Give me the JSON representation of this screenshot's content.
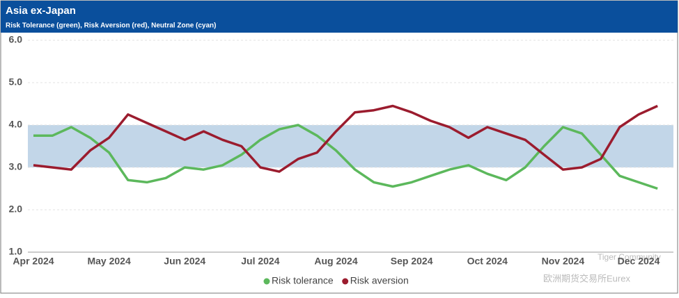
{
  "chart_data": {
    "type": "line",
    "title": "Asia ex-Japan",
    "subtitle": "Risk Tolerance (green), Risk Aversion (red), Neutral Zone (cyan)",
    "categories": [
      "Apr 2024",
      null,
      null,
      null,
      "May 2024",
      null,
      null,
      null,
      "Jun 2024",
      null,
      null,
      null,
      "Jul 2024",
      null,
      null,
      null,
      "Aug 2024",
      null,
      null,
      null,
      "Sep 2024",
      null,
      null,
      null,
      "Oct 2024",
      null,
      null,
      null,
      "Nov 2024",
      null,
      null,
      null,
      "Dec 2024",
      null
    ],
    "series": [
      {
        "name": "Risk tolerance",
        "color": "#5cb85c",
        "values": [
          3.75,
          3.75,
          3.95,
          3.7,
          3.35,
          2.7,
          2.65,
          2.75,
          3.0,
          2.95,
          3.05,
          3.3,
          3.65,
          3.9,
          4.0,
          3.75,
          3.4,
          2.95,
          2.65,
          2.55,
          2.65,
          2.8,
          2.95,
          3.05,
          2.85,
          2.7,
          3.0,
          3.5,
          3.95,
          3.8,
          3.3,
          2.8,
          2.65,
          2.5
        ]
      },
      {
        "name": "Risk aversion",
        "color": "#9b1c2e",
        "values": [
          3.05,
          3.0,
          2.95,
          3.4,
          3.7,
          4.25,
          4.05,
          3.85,
          3.65,
          3.85,
          3.65,
          3.5,
          3.0,
          2.9,
          3.2,
          3.35,
          3.85,
          4.3,
          4.35,
          4.45,
          4.3,
          4.1,
          3.95,
          3.7,
          3.95,
          3.8,
          3.65,
          3.3,
          2.95,
          3.0,
          3.2,
          3.95,
          4.25,
          4.45
        ]
      }
    ],
    "band": {
      "from": 3,
      "to": 4,
      "color": "#c2d6e8"
    },
    "ylim": [
      1,
      6
    ],
    "yticks": [
      {
        "value": 1,
        "label": "1.0"
      },
      {
        "value": 2,
        "label": "2.0"
      },
      {
        "value": 3,
        "label": "3.0"
      },
      {
        "value": 4,
        "label": "4.0"
      },
      {
        "value": 5,
        "label": "5.0"
      },
      {
        "value": 6,
        "label": "6.0"
      }
    ],
    "grid": true,
    "legend": "bottom",
    "watermark": [
      "Tiger Community",
      "欧洲期货交易所Eurex"
    ]
  }
}
